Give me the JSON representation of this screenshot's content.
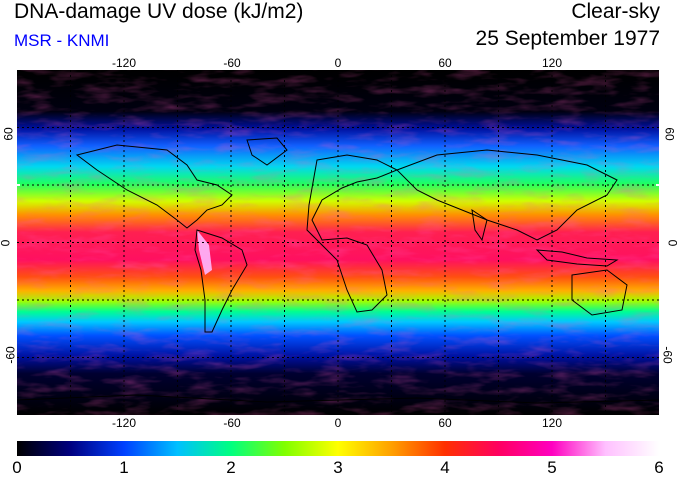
{
  "header": {
    "title": "DNA-damage UV dose (kJ/m2)",
    "source": "MSR - KNMI",
    "sky_condition": "Clear-sky",
    "date": "25 September 1977"
  },
  "map": {
    "projection": "equirectangular",
    "lon_ticks": [
      "-120",
      "-60",
      "0",
      "60",
      "120"
    ],
    "lat_ticks": [
      "60",
      "0",
      "-60"
    ],
    "gridlines": "dotted"
  },
  "colorbar": {
    "unit": "kJ/m2",
    "range": [
      0,
      6
    ],
    "labels": [
      "0",
      "1",
      "2",
      "3",
      "4",
      "5",
      "6"
    ],
    "colors": [
      "#000000",
      "#000080",
      "#0040ff",
      "#00c0ff",
      "#00ff80",
      "#80ff00",
      "#ffff00",
      "#ffa000",
      "#ff3000",
      "#ff0060",
      "#ff00c0",
      "#ffc0ff",
      "#ffffff"
    ]
  },
  "colors": {
    "title_text": "#000000",
    "source_text": "#0000ff"
  }
}
